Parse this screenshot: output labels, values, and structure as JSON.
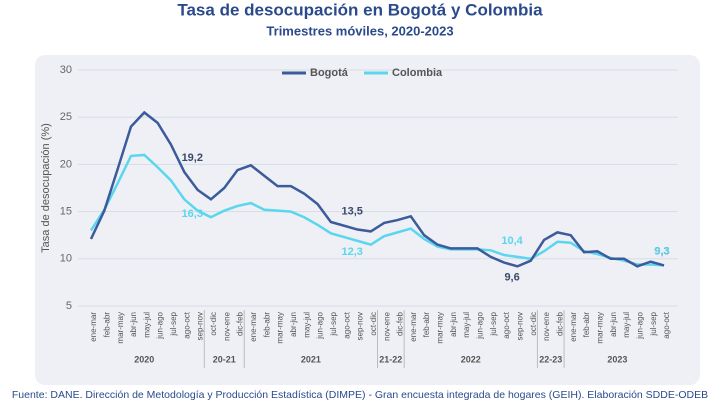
{
  "chart_data": {
    "type": "line",
    "title": "Tasa de desocupación en Bogotá y Colombia",
    "subtitle": "Trimestres móviles, 2020-2023",
    "y_label": "Tasa de desocupación (%)",
    "source": "Fuente: DANE. Dirección de Metodología y Producción Estadística (DIMPE) - Gran encuesta integrada de hogares (GEIH). Elaboración SDDE-ODEB",
    "categories": [
      "ene-mar",
      "feb-abr",
      "mar-may",
      "abr-jun",
      "may-jul",
      "jun-ago",
      "jul-sep",
      "ago-oct",
      "sep-nov",
      "oct-dic",
      "nov-ene",
      "dic-feb",
      "ene-mar",
      "feb-abr",
      "mar-may",
      "abr-jun",
      "may-jul",
      "jun-ago",
      "jul-sep",
      "ago-oct",
      "sep-nov",
      "oct-dic",
      "nov-ene",
      "dic-feb",
      "ene-mar",
      "feb-abr",
      "mar-may",
      "abr-jun",
      "may-jul",
      "jun-ago",
      "jul-sep",
      "ago-oct",
      "sep-nov",
      "oct-dic",
      "nov-ene",
      "dic-feb",
      "ene-mar",
      "feb-abr",
      "mar-may",
      "abr-jun",
      "may-jul",
      "jun-ago",
      "jul-sep",
      "ago-oct"
    ],
    "groups": [
      {
        "label": "2020",
        "count": 9
      },
      {
        "label": "20-21",
        "count": 3
      },
      {
        "label": "2021",
        "count": 10
      },
      {
        "label": "21-22",
        "count": 2
      },
      {
        "label": "2022",
        "count": 10
      },
      {
        "label": "22-23",
        "count": 2
      },
      {
        "label": "2023",
        "count": 8
      }
    ],
    "series": [
      {
        "name": "Bogotá",
        "color": "#3b5b9b",
        "values": [
          12.1,
          15.1,
          19.5,
          24.0,
          25.5,
          24.4,
          22.1,
          19.2,
          17.3,
          16.3,
          17.5,
          19.4,
          19.9,
          18.8,
          17.7,
          17.7,
          16.9,
          15.8,
          13.9,
          13.5,
          13.1,
          12.9,
          13.8,
          14.1,
          14.5,
          12.5,
          11.5,
          11.1,
          11.1,
          11.1,
          10.2,
          9.6,
          9.2,
          9.8,
          12.0,
          12.8,
          12.5,
          10.7,
          10.8,
          10.0,
          10.0,
          9.2,
          9.7,
          9.3
        ],
        "value_labels": [
          null,
          null,
          null,
          null,
          null,
          null,
          null,
          "19,2",
          null,
          null,
          null,
          null,
          null,
          null,
          null,
          null,
          null,
          null,
          null,
          "13,5",
          null,
          null,
          null,
          null,
          null,
          null,
          null,
          null,
          null,
          null,
          null,
          "9,6",
          null,
          null,
          null,
          null,
          null,
          null,
          null,
          null,
          null,
          null,
          null,
          "9,3"
        ]
      },
      {
        "name": "Colombia",
        "color": "#5ad6ef",
        "values": [
          13.0,
          15.2,
          18.0,
          20.9,
          21.0,
          19.7,
          18.3,
          16.3,
          15.1,
          14.4,
          15.1,
          15.6,
          15.9,
          15.2,
          15.1,
          15.0,
          14.4,
          13.6,
          12.7,
          12.3,
          11.9,
          11.5,
          12.4,
          12.8,
          13.2,
          12.1,
          11.3,
          11.0,
          11.0,
          11.0,
          10.9,
          10.4,
          10.2,
          10.0,
          10.8,
          11.8,
          11.7,
          10.8,
          10.5,
          10.1,
          9.8,
          9.4,
          9.4,
          9.3
        ],
        "value_labels": [
          null,
          null,
          null,
          null,
          null,
          null,
          null,
          "16,3",
          null,
          null,
          null,
          null,
          null,
          null,
          null,
          null,
          null,
          null,
          null,
          "12,3",
          null,
          null,
          null,
          null,
          null,
          null,
          null,
          null,
          null,
          null,
          null,
          "10,4",
          null,
          null,
          null,
          null,
          null,
          null,
          null,
          null,
          null,
          null,
          null,
          "9,3"
        ]
      }
    ],
    "ylim": [
      5,
      30
    ],
    "yticks": [
      5,
      10,
      15,
      20,
      25,
      30
    ],
    "grid": true,
    "legend": "top"
  }
}
